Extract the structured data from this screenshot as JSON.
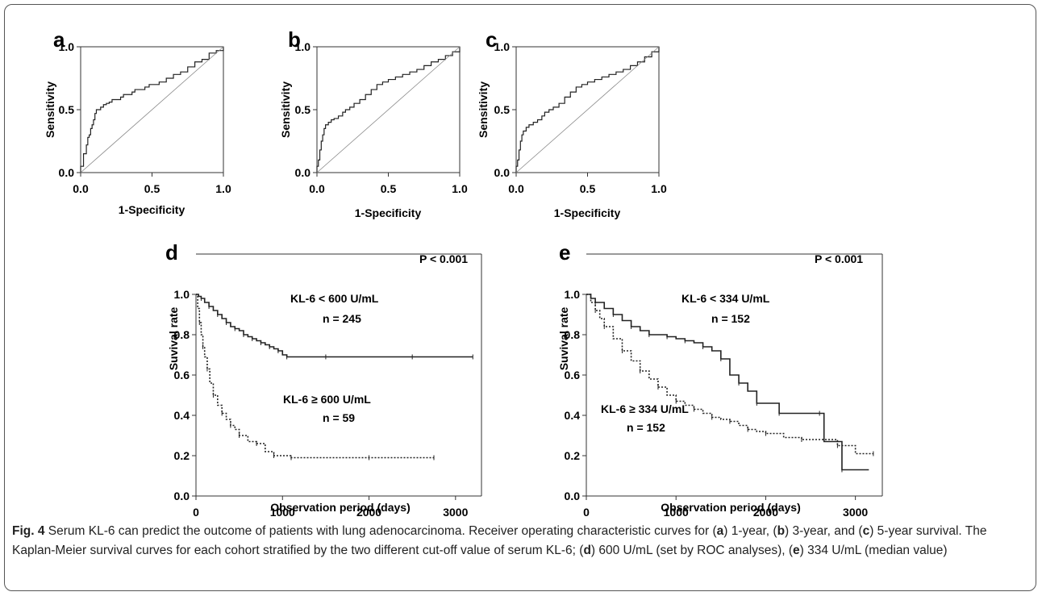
{
  "chart_data": [
    {
      "panel": "a",
      "type": "line",
      "xlabel": "1-Specificity",
      "ylabel": "Sensitivity",
      "xlim": [
        0,
        1
      ],
      "ylim": [
        0,
        1
      ],
      "xticks": [
        "0.0",
        "0.5",
        "1.0"
      ],
      "yticks": [
        "0.0",
        "0.5",
        "1.0"
      ],
      "series": [
        {
          "x": [
            0,
            0,
            0.02,
            0.02,
            0.04,
            0.05,
            0.06,
            0.07,
            0.08,
            0.09,
            0.1,
            0.11,
            0.12,
            0.14,
            0.16,
            0.18,
            0.2,
            0.22,
            0.25,
            0.28,
            0.3,
            0.33,
            0.36,
            0.38,
            0.42,
            0.45,
            0.48,
            0.5,
            0.55,
            0.6,
            0.65,
            0.7,
            0.75,
            0.8,
            0.85,
            0.9,
            0.95,
            1.0
          ],
          "y": [
            0,
            0.05,
            0.08,
            0.15,
            0.22,
            0.28,
            0.3,
            0.35,
            0.38,
            0.42,
            0.47,
            0.5,
            0.5,
            0.52,
            0.54,
            0.55,
            0.56,
            0.58,
            0.58,
            0.6,
            0.62,
            0.62,
            0.64,
            0.66,
            0.66,
            0.68,
            0.7,
            0.7,
            0.72,
            0.75,
            0.78,
            0.8,
            0.84,
            0.88,
            0.9,
            0.95,
            0.97,
            1.0
          ]
        },
        {
          "x": [
            0,
            1
          ],
          "y": [
            0,
            1
          ]
        }
      ]
    },
    {
      "panel": "b",
      "type": "line",
      "xlabel": "1-Specificity",
      "ylabel": "Sensitivity",
      "xlim": [
        0,
        1
      ],
      "ylim": [
        0,
        1
      ],
      "xticks": [
        "0.0",
        "0.5",
        "1.0"
      ],
      "yticks": [
        "0.0",
        "0.5",
        "1.0"
      ],
      "series": [
        {
          "x": [
            0,
            0,
            0.01,
            0.02,
            0.03,
            0.04,
            0.05,
            0.06,
            0.08,
            0.1,
            0.12,
            0.15,
            0.18,
            0.2,
            0.23,
            0.26,
            0.3,
            0.34,
            0.38,
            0.42,
            0.46,
            0.5,
            0.55,
            0.6,
            0.65,
            0.7,
            0.75,
            0.8,
            0.85,
            0.9,
            0.95,
            1.0
          ],
          "y": [
            0,
            0.05,
            0.1,
            0.18,
            0.25,
            0.3,
            0.35,
            0.38,
            0.4,
            0.42,
            0.43,
            0.45,
            0.48,
            0.5,
            0.52,
            0.55,
            0.58,
            0.62,
            0.66,
            0.7,
            0.72,
            0.74,
            0.76,
            0.78,
            0.8,
            0.82,
            0.85,
            0.88,
            0.9,
            0.93,
            0.96,
            1.0
          ]
        },
        {
          "x": [
            0,
            1
          ],
          "y": [
            0,
            1
          ]
        }
      ]
    },
    {
      "panel": "c",
      "type": "line",
      "xlabel": "1-Specificity",
      "ylabel": "Sensitivity",
      "xlim": [
        0,
        1
      ],
      "ylim": [
        0,
        1
      ],
      "xticks": [
        "0.0",
        "0.5",
        "1.0"
      ],
      "yticks": [
        "0.0",
        "0.5",
        "1.0"
      ],
      "series": [
        {
          "x": [
            0,
            0,
            0.01,
            0.02,
            0.03,
            0.04,
            0.05,
            0.07,
            0.09,
            0.12,
            0.15,
            0.18,
            0.2,
            0.23,
            0.26,
            0.3,
            0.34,
            0.38,
            0.42,
            0.46,
            0.5,
            0.55,
            0.6,
            0.65,
            0.7,
            0.75,
            0.8,
            0.85,
            0.9,
            0.95,
            1.0
          ],
          "y": [
            0,
            0.05,
            0.1,
            0.18,
            0.25,
            0.3,
            0.33,
            0.36,
            0.38,
            0.4,
            0.42,
            0.45,
            0.48,
            0.5,
            0.52,
            0.55,
            0.6,
            0.64,
            0.68,
            0.7,
            0.72,
            0.74,
            0.76,
            0.78,
            0.8,
            0.82,
            0.85,
            0.88,
            0.92,
            0.96,
            1.0
          ]
        },
        {
          "x": [
            0,
            1
          ],
          "y": [
            0,
            1
          ]
        }
      ]
    },
    {
      "panel": "d",
      "type": "line",
      "xlabel": "Observation period (days)",
      "ylabel": "Suvival rate",
      "xlim": [
        0,
        3300
      ],
      "ylim": [
        0,
        1
      ],
      "xticks": [
        "0",
        "1000",
        "2000",
        "3000"
      ],
      "yticks": [
        "0.0",
        "0.2",
        "0.4",
        "0.6",
        "0.8",
        "1.0"
      ],
      "p_value": "P < 0.001",
      "series": [
        {
          "name": "KL-6 < 600 U/mL",
          "n_label": "n = 245",
          "style": "solid",
          "x": [
            0,
            30,
            60,
            100,
            150,
            200,
            250,
            300,
            350,
            400,
            450,
            500,
            550,
            600,
            650,
            700,
            750,
            800,
            850,
            900,
            950,
            1000,
            1050,
            1100,
            1500,
            2000,
            2500,
            3000,
            3200
          ],
          "y": [
            1.0,
            0.99,
            0.98,
            0.96,
            0.94,
            0.92,
            0.9,
            0.88,
            0.86,
            0.84,
            0.83,
            0.82,
            0.8,
            0.79,
            0.78,
            0.77,
            0.76,
            0.75,
            0.74,
            0.73,
            0.72,
            0.7,
            0.69,
            0.69,
            0.69,
            0.69,
            0.69,
            0.69,
            0.69
          ]
        },
        {
          "name": "KL-6 ≥ 600 U/mL",
          "n_label": "n = 59",
          "style": "dotted",
          "x": [
            0,
            20,
            40,
            60,
            80,
            100,
            130,
            160,
            200,
            250,
            300,
            350,
            400,
            450,
            500,
            600,
            700,
            800,
            900,
            1000,
            1100,
            1500,
            2000,
            2500,
            2750
          ],
          "y": [
            1.0,
            0.93,
            0.86,
            0.8,
            0.74,
            0.69,
            0.63,
            0.56,
            0.5,
            0.45,
            0.41,
            0.38,
            0.35,
            0.33,
            0.3,
            0.27,
            0.26,
            0.22,
            0.2,
            0.2,
            0.19,
            0.19,
            0.19,
            0.19,
            0.19
          ]
        }
      ]
    },
    {
      "panel": "e",
      "type": "line",
      "xlabel": "Observation period (days)",
      "ylabel": "Suvival rate",
      "xlim": [
        0,
        3300
      ],
      "ylim": [
        0,
        1
      ],
      "xticks": [
        "0",
        "1000",
        "2000",
        "3000"
      ],
      "yticks": [
        "0.0",
        "0.2",
        "0.4",
        "0.6",
        "0.8",
        "1.0"
      ],
      "p_value": "P < 0.001",
      "series": [
        {
          "name": "KL-6 < 334 U/mL",
          "n_label": "n = 152",
          "style": "solid",
          "x": [
            0,
            50,
            100,
            200,
            300,
            400,
            500,
            600,
            700,
            800,
            900,
            1000,
            1100,
            1200,
            1300,
            1400,
            1500,
            1600,
            1700,
            1800,
            1900,
            2000,
            2150,
            2400,
            2600,
            2650,
            2850,
            3150
          ],
          "y": [
            1.0,
            0.98,
            0.96,
            0.93,
            0.9,
            0.87,
            0.84,
            0.82,
            0.8,
            0.8,
            0.79,
            0.78,
            0.77,
            0.76,
            0.74,
            0.72,
            0.68,
            0.6,
            0.56,
            0.52,
            0.46,
            0.46,
            0.41,
            0.41,
            0.41,
            0.27,
            0.13,
            0.13
          ]
        },
        {
          "name": "KL-6 ≥ 334 U/mL",
          "n_label": "n = 152",
          "style": "dotted",
          "x": [
            0,
            50,
            100,
            150,
            200,
            300,
            400,
            500,
            600,
            700,
            800,
            900,
            1000,
            1100,
            1200,
            1300,
            1400,
            1500,
            1600,
            1700,
            1800,
            1900,
            2000,
            2200,
            2400,
            2600,
            2800,
            3000,
            3200
          ],
          "y": [
            1.0,
            0.96,
            0.92,
            0.88,
            0.84,
            0.78,
            0.72,
            0.67,
            0.62,
            0.58,
            0.54,
            0.5,
            0.47,
            0.45,
            0.43,
            0.41,
            0.39,
            0.38,
            0.37,
            0.35,
            0.33,
            0.32,
            0.31,
            0.29,
            0.28,
            0.28,
            0.25,
            0.21,
            0.21
          ]
        }
      ]
    }
  ],
  "caption": {
    "fig_label": "Fig. 4",
    "title": "Serum KL-6 can predict the outcome of patients with lung adenocarcinoma.",
    "t1": "Receiver operating characteristic curves for (",
    "a": "a",
    "t2": ") 1-year, (",
    "b": "b",
    "t3": ") 3-year,",
    "t4": "and (",
    "c": "c",
    "t5": ") 5-year survival. The Kaplan-Meier survival curves for each cohort stratified by the two different cut-off value of serum KL-6; (",
    "d": "d",
    "t6": ") 600 U/mL (set by",
    "t7": "ROC analyses), (",
    "e": "e",
    "t8": ") 334 U/mL (median value)"
  }
}
